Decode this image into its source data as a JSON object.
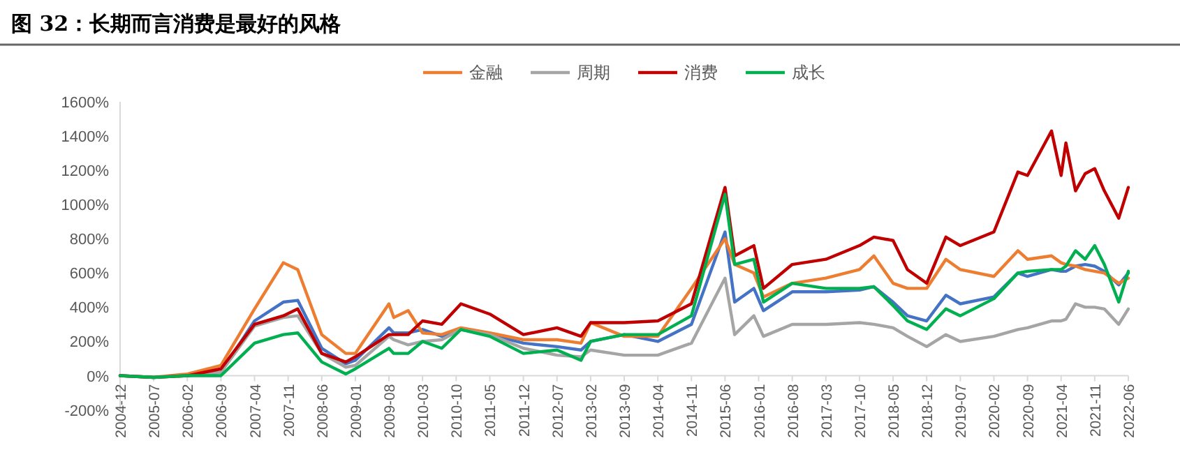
{
  "chart_data": {
    "type": "line",
    "title": "图 32：长期而言消费是最好的风格",
    "x": [
      "2004-12",
      "2005-07",
      "2006-02",
      "2006-09",
      "2007-04",
      "2007-10",
      "2008-01",
      "2008-06",
      "2008-11",
      "2009-01",
      "2009-08",
      "2009-09",
      "2009-12",
      "2010-03",
      "2010-07",
      "2010-11",
      "2011-05",
      "2011-12",
      "2012-07",
      "2012-12",
      "2013-02",
      "2013-09",
      "2014-04",
      "2014-11",
      "2015-06",
      "2015-08",
      "2015-12",
      "2016-02",
      "2016-08",
      "2017-03",
      "2017-10",
      "2018-01",
      "2018-05",
      "2018-08",
      "2018-12",
      "2019-04",
      "2019-07",
      "2020-02",
      "2020-07",
      "2020-09",
      "2021-02",
      "2021-04",
      "2021-05",
      "2021-07",
      "2021-09",
      "2021-11",
      "2022-01",
      "2022-04",
      "2022-06"
    ],
    "series": [
      {
        "color": "#4472c4",
        "values": [
          null,
          null,
          0,
          20,
          320,
          430,
          440,
          160,
          70,
          90,
          280,
          250,
          250,
          270,
          230,
          270,
          240,
          190,
          170,
          150,
          200,
          240,
          200,
          300,
          840,
          430,
          510,
          380,
          490,
          490,
          500,
          520,
          430,
          350,
          320,
          470,
          420,
          460,
          600,
          580,
          620,
          610,
          610,
          640,
          650,
          640,
          610,
          530,
          600
        ]
      },
      {
        "name": "金融",
        "color": "#ed7d31",
        "values": [
          0,
          -10,
          10,
          60,
          390,
          660,
          620,
          240,
          130,
          130,
          420,
          340,
          380,
          250,
          240,
          280,
          250,
          210,
          210,
          190,
          310,
          230,
          230,
          510,
          800,
          650,
          600,
          460,
          540,
          570,
          620,
          700,
          540,
          510,
          510,
          680,
          620,
          580,
          730,
          680,
          700,
          660,
          650,
          640,
          620,
          610,
          600,
          540,
          570
        ]
      },
      {
        "name": "周期",
        "color": "#a5a5a5",
        "values": [
          0,
          -10,
          0,
          20,
          290,
          340,
          350,
          130,
          50,
          60,
          230,
          210,
          180,
          200,
          210,
          270,
          240,
          160,
          120,
          110,
          150,
          120,
          120,
          190,
          570,
          240,
          350,
          230,
          300,
          300,
          310,
          300,
          280,
          230,
          170,
          240,
          200,
          230,
          270,
          280,
          320,
          320,
          330,
          420,
          400,
          400,
          390,
          300,
          390
        ]
      },
      {
        "name": "消费",
        "color": "#c00000",
        "values": [
          0,
          -10,
          0,
          40,
          300,
          350,
          390,
          130,
          80,
          110,
          240,
          240,
          240,
          320,
          300,
          420,
          360,
          240,
          280,
          230,
          310,
          310,
          320,
          420,
          1100,
          700,
          760,
          510,
          650,
          680,
          760,
          810,
          790,
          620,
          540,
          810,
          760,
          840,
          1190,
          1170,
          1430,
          1170,
          1360,
          1080,
          1180,
          1210,
          1080,
          920,
          1100
        ]
      },
      {
        "name": "成长",
        "color": "#00b050",
        "values": [
          0,
          -10,
          0,
          0,
          190,
          240,
          250,
          80,
          10,
          40,
          160,
          130,
          130,
          200,
          160,
          270,
          230,
          130,
          150,
          90,
          200,
          240,
          240,
          350,
          1060,
          650,
          680,
          430,
          540,
          510,
          510,
          520,
          410,
          320,
          270,
          390,
          350,
          450,
          600,
          610,
          620,
          620,
          640,
          730,
          680,
          760,
          650,
          430,
          610
        ]
      }
    ],
    "xlim": [
      "2004-12",
      "2022-06"
    ],
    "xticks": [
      {
        "value": "2004-12",
        "label": "2004-12"
      },
      {
        "value": "2005-07",
        "label": "2005-07"
      },
      {
        "value": "2006-02",
        "label": "2006-02"
      },
      {
        "value": "2006-09",
        "label": "2006-09"
      },
      {
        "value": "2007-04",
        "label": "2007-04"
      },
      {
        "value": "2007-11",
        "label": "2007-11"
      },
      {
        "value": "2008-06",
        "label": "2008-06"
      },
      {
        "value": "2009-01",
        "label": "2009-01"
      },
      {
        "value": "2009-08",
        "label": "2009-08"
      },
      {
        "value": "2010-03",
        "label": "2010-03"
      },
      {
        "value": "2010-10",
        "label": "2010-10"
      },
      {
        "value": "2011-05",
        "label": "2011-05"
      },
      {
        "value": "2011-12",
        "label": "2011-12"
      },
      {
        "value": "2012-07",
        "label": "2012-07"
      },
      {
        "value": "2013-02",
        "label": "2013-02"
      },
      {
        "value": "2013-09",
        "label": "2013-09"
      },
      {
        "value": "2014-04",
        "label": "2014-04"
      },
      {
        "value": "2014-11",
        "label": "2014-11"
      },
      {
        "value": "2015-06",
        "label": "2015-06"
      },
      {
        "value": "2016-01",
        "label": "2016-01"
      },
      {
        "value": "2016-08",
        "label": "2016-08"
      },
      {
        "value": "2017-03",
        "label": "2017-03"
      },
      {
        "value": "2017-10",
        "label": "2017-10"
      },
      {
        "value": "2018-05",
        "label": "2018-05"
      },
      {
        "value": "2018-12",
        "label": "2018-12"
      },
      {
        "value": "2019-07",
        "label": "2019-07"
      },
      {
        "value": "2020-02",
        "label": "2020-02"
      },
      {
        "value": "2020-09",
        "label": "2020-09"
      },
      {
        "value": "2021-04",
        "label": "2021-04"
      },
      {
        "value": "2021-11",
        "label": "2021-11"
      },
      {
        "value": "2022-06",
        "label": "2022-06"
      }
    ],
    "ylim": [
      -200,
      1600
    ],
    "yticks": [
      {
        "value": -200,
        "label": "-200%"
      },
      {
        "value": 0,
        "label": "0%"
      },
      {
        "value": 200,
        "label": "200%"
      },
      {
        "value": 400,
        "label": "400%"
      },
      {
        "value": 600,
        "label": "600%"
      },
      {
        "value": 800,
        "label": "800%"
      },
      {
        "value": 1000,
        "label": "1000%"
      },
      {
        "value": 1200,
        "label": "1200%"
      },
      {
        "value": 1400,
        "label": "1400%"
      },
      {
        "value": 1600,
        "label": "1600%"
      }
    ],
    "grid": false,
    "legend": "top",
    "marker": "none",
    "line_style": "solid"
  }
}
